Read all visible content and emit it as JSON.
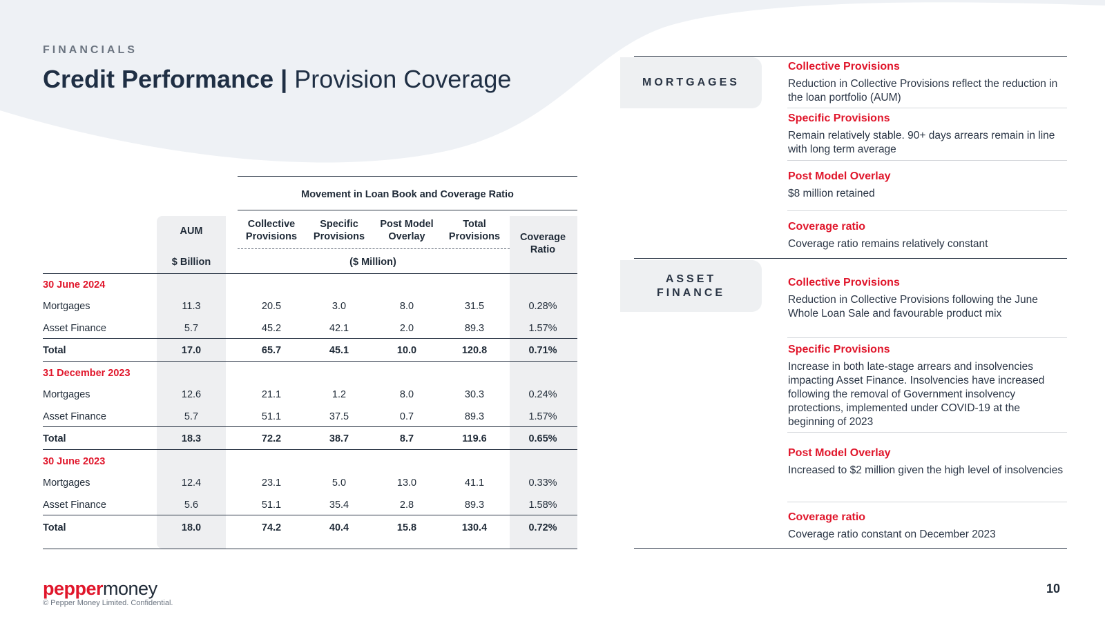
{
  "header": {
    "section_label": "FINANCIALS",
    "title_bold": "Credit Performance |",
    "title_light": "Provision Coverage"
  },
  "table": {
    "group_header": "Movement in Loan Book and Coverage Ratio",
    "columns": {
      "aum": "AUM",
      "aum_unit": "$ Billion",
      "collective": [
        "Collective",
        "Provisions"
      ],
      "specific": [
        "Specific",
        "Provisions"
      ],
      "pmo": [
        "Post Model",
        "Overlay"
      ],
      "total": [
        "Total",
        "Provisions"
      ],
      "coverage": [
        "Coverage",
        "Ratio"
      ],
      "million_unit": "($ Million)"
    },
    "periods": [
      {
        "label": "30 June 2024",
        "rows": [
          {
            "name": "Mortgages",
            "aum": "11.3",
            "collective": "20.5",
            "specific": "3.0",
            "pmo": "8.0",
            "total": "31.5",
            "coverage": "0.28%"
          },
          {
            "name": "Asset Finance",
            "aum": "5.7",
            "collective": "45.2",
            "specific": "42.1",
            "pmo": "2.0",
            "total": "89.3",
            "coverage": "1.57%"
          },
          {
            "name": "Total",
            "aum": "17.0",
            "collective": "65.7",
            "specific": "45.1",
            "pmo": "10.0",
            "total": "120.8",
            "coverage": "0.71%"
          }
        ]
      },
      {
        "label": "31 December 2023",
        "rows": [
          {
            "name": "Mortgages",
            "aum": "12.6",
            "collective": "21.1",
            "specific": "1.2",
            "pmo": "8.0",
            "total": "30.3",
            "coverage": "0.24%"
          },
          {
            "name": "Asset Finance",
            "aum": "5.7",
            "collective": "51.1",
            "specific": "37.5",
            "pmo": "0.7",
            "total": "89.3",
            "coverage": "1.57%"
          },
          {
            "name": "Total",
            "aum": "18.3",
            "collective": "72.2",
            "specific": "38.7",
            "pmo": "8.7",
            "total": "119.6",
            "coverage": "0.65%"
          }
        ]
      },
      {
        "label": "30 June 2023",
        "rows": [
          {
            "name": "Mortgages",
            "aum": "12.4",
            "collective": "23.1",
            "specific": "5.0",
            "pmo": "13.0",
            "total": "41.1",
            "coverage": "0.33%"
          },
          {
            "name": "Asset Finance",
            "aum": "5.6",
            "collective": "51.1",
            "specific": "35.4",
            "pmo": "2.8",
            "total": "89.3",
            "coverage": "1.58%"
          },
          {
            "name": "Total",
            "aum": "18.0",
            "collective": "74.2",
            "specific": "40.4",
            "pmo": "15.8",
            "total": "130.4",
            "coverage": "0.72%"
          }
        ]
      }
    ]
  },
  "commentary": {
    "mortgages": {
      "tag": "MORTGAGES",
      "items": [
        {
          "heading": "Collective Provisions",
          "body": "Reduction in Collective Provisions reflect the reduction in the loan portfolio (AUM)"
        },
        {
          "heading": "Specific Provisions",
          "body": "Remain relatively stable.  90+ days arrears remain in line with long term average"
        },
        {
          "heading": "Post Model Overlay",
          "body": "$8 million retained"
        },
        {
          "heading": "Coverage ratio",
          "body": "Coverage ratio remains relatively constant"
        }
      ]
    },
    "asset_finance": {
      "tag_line1": "ASSET",
      "tag_line2": "FINANCE",
      "items": [
        {
          "heading": "Collective Provisions",
          "body": "Reduction in Collective Provisions following the June Whole Loan Sale and favourable product mix"
        },
        {
          "heading": "Specific Provisions",
          "body": "Increase in both late-stage arrears and insolvencies impacting Asset Finance. Insolvencies have increased following the removal of Government insolvency protections, implemented under COVID-19 at the beginning of 2023"
        },
        {
          "heading": "Post Model Overlay",
          "body": "Increased to $2 million given the high level of insolvencies"
        },
        {
          "heading": "Coverage ratio",
          "body": "Coverage ratio constant on December 2023"
        }
      ]
    }
  },
  "footer": {
    "logo_part1": "pepper",
    "logo_part2": "money",
    "copyright": "© Pepper Money Limited. Confidential.",
    "page_number": "10"
  },
  "colors": {
    "accent_red": "#e0162b",
    "navy": "#1f2f44",
    "shade": "#eeeff1"
  }
}
